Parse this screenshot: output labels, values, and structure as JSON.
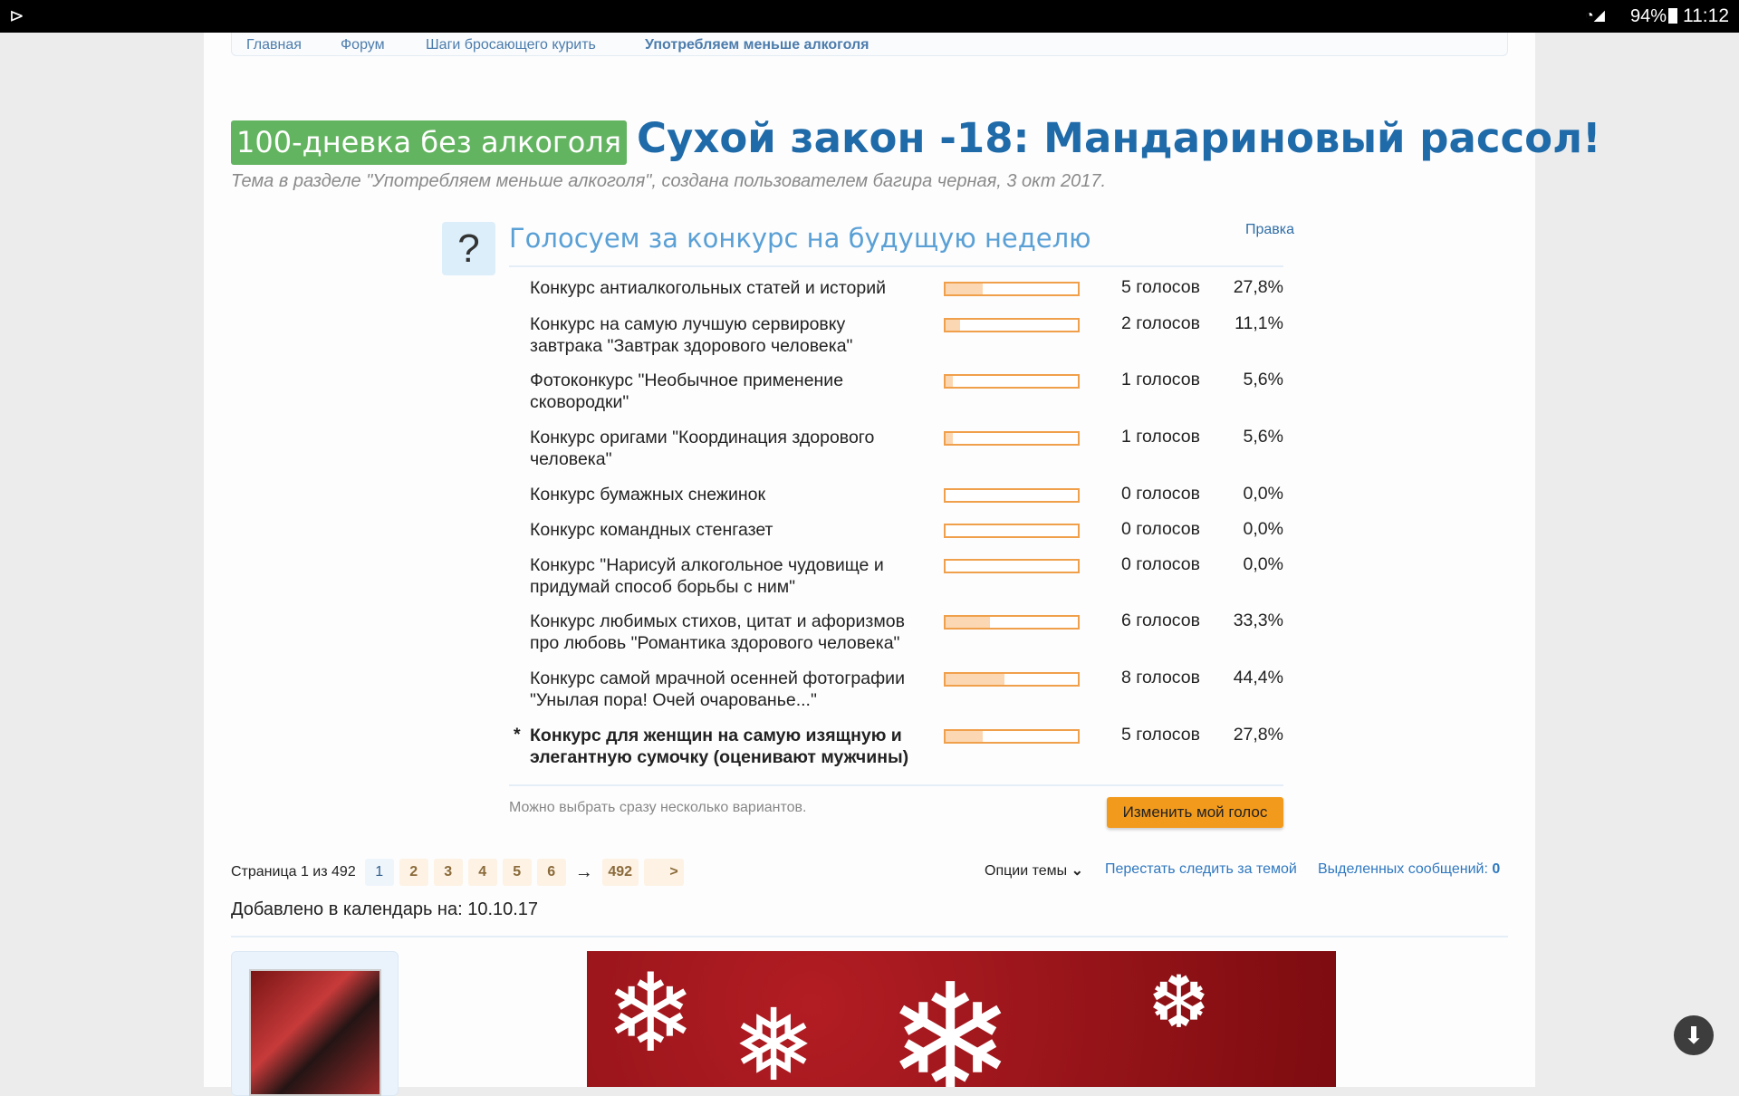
{
  "status_bar": {
    "battery": "94%",
    "time": "11:12"
  },
  "breadcrumbs": [
    "Главная",
    "Форум",
    "Шаги бросающего курить",
    "Употребляем меньше алкоголя"
  ],
  "thread": {
    "prefix": "100-дневка без алкоголя",
    "title": "Сухой закон -18: Мандариновый рассол!",
    "subtitle": "Тема в разделе \"Употребляем меньше алкоголя\", создана пользователем багира черная, 3 окт 2017."
  },
  "poll": {
    "question": "Голосуем за конкурс на будущую неделю",
    "edit_label": "Правка",
    "options": [
      {
        "text": "Конкурс антиалкогольных статей и историй",
        "votes": "5 голосов",
        "percent": "27,8%",
        "fraction": 0.278,
        "selected": false
      },
      {
        "text": "Конкурс на самую лучшую сервировку завтрака \"Завтрак здорового человека\"",
        "votes": "2 голосов",
        "percent": "11,1%",
        "fraction": 0.111,
        "selected": false
      },
      {
        "text": "Фотоконкурс \"Необычное применение сковородки\"",
        "votes": "1 голосов",
        "percent": "5,6%",
        "fraction": 0.056,
        "selected": false
      },
      {
        "text": "Конкурс оригами \"Координация здорового человека\"",
        "votes": "1 голосов",
        "percent": "5,6%",
        "fraction": 0.056,
        "selected": false
      },
      {
        "text": "Конкурс бумажных снежинок",
        "votes": "0 голосов",
        "percent": "0,0%",
        "fraction": 0,
        "selected": false
      },
      {
        "text": "Конкурс командных стенгазет",
        "votes": "0 голосов",
        "percent": "0,0%",
        "fraction": 0,
        "selected": false
      },
      {
        "text": "Конкурс \"Нарисуй алкогольное чудовище и придумай способ борьбы с ним\"",
        "votes": "0 голосов",
        "percent": "0,0%",
        "fraction": 0,
        "selected": false
      },
      {
        "text": "Конкурс любимых стихов, цитат и афоризмов про любовь \"Романтика здорового человека\"",
        "votes": "6 голосов",
        "percent": "33,3%",
        "fraction": 0.333,
        "selected": false
      },
      {
        "text": "Конкурс самой мрачной осенней фотографии \"Унылая пора! Очей очарованье...\"",
        "votes": "8 голосов",
        "percent": "44,4%",
        "fraction": 0.444,
        "selected": false
      },
      {
        "text": "Конкурс для женщин на самую изящную и элегантную сумочку (оценивают мужчины)",
        "votes": "5 голосов",
        "percent": "27,8%",
        "fraction": 0.278,
        "selected": true
      }
    ],
    "selected_marker": "*",
    "note": "Можно выбрать сразу несколько вариантов.",
    "vote_button": "Изменить мой голос"
  },
  "pagination": {
    "label": "Страница 1 из 492",
    "pages": [
      "1",
      "2",
      "3",
      "4",
      "5",
      "6"
    ],
    "arrow": "→",
    "last": "492",
    "next": ">"
  },
  "thread_tools": {
    "options": "Опции темы",
    "unwatch": "Перестать следить за темой",
    "selected_label": "Выделенных сообщений:",
    "selected_count": "0"
  },
  "calendar": "Добавлено в календарь на: 10.10.17"
}
